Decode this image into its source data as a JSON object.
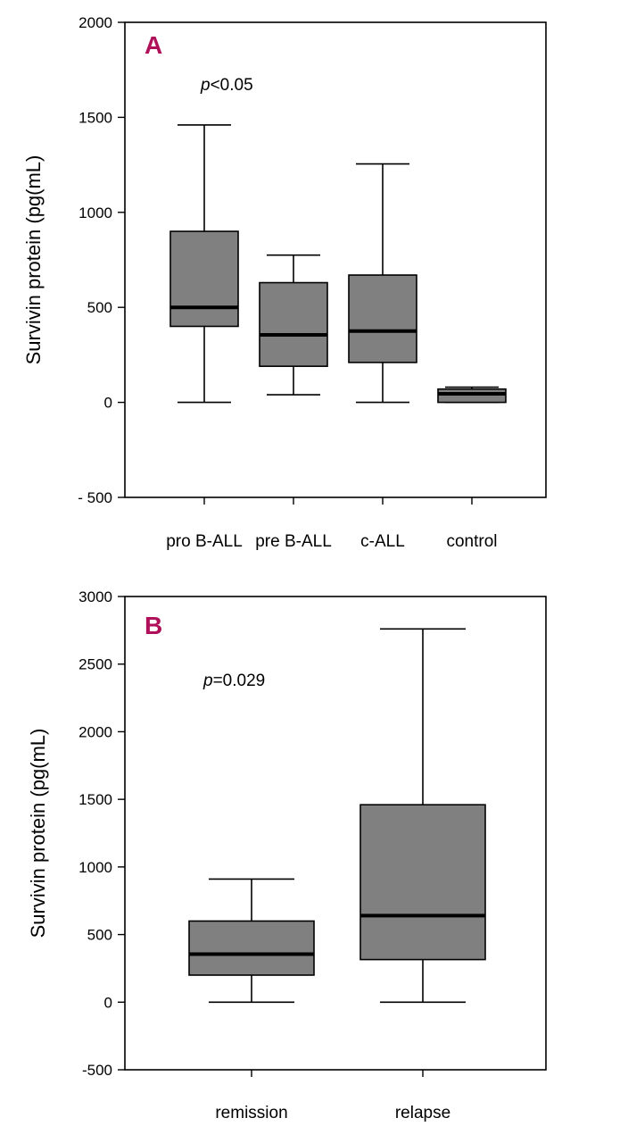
{
  "chart_data": [
    {
      "type": "box",
      "panel": "A",
      "annotation_prefix": "p",
      "annotation_suffix": "<0.05",
      "xlabel": "",
      "ylabel": "Survivin protein (pg(mL)",
      "ylim": [
        -500,
        2000
      ],
      "yticks": [
        2000,
        1500,
        1000,
        500,
        0,
        -500
      ],
      "ytick_labels": [
        "2000",
        "1500",
        "1000",
        "500",
        "0",
        "- 500"
      ],
      "categories": [
        "pro B-ALL",
        "pre B-ALL",
        "c-ALL",
        "control"
      ],
      "boxes": [
        {
          "min": 0,
          "q1": 400,
          "median": 500,
          "q3": 900,
          "max": 1460
        },
        {
          "min": 40,
          "q1": 190,
          "median": 355,
          "q3": 630,
          "max": 775
        },
        {
          "min": 0,
          "q1": 210,
          "median": 375,
          "q3": 670,
          "max": 1255
        },
        {
          "min": 0,
          "q1": 0,
          "median": 45,
          "q3": 70,
          "max": 80
        }
      ],
      "box_color": "#808080",
      "panel_color": "#b0105a"
    },
    {
      "type": "box",
      "panel": "B",
      "annotation_prefix": "p",
      "annotation_suffix": "=0.029",
      "xlabel": "",
      "ylabel": "Survivin protein (pg(mL)",
      "ylim": [
        -500,
        3000
      ],
      "yticks": [
        3000,
        2500,
        2000,
        1500,
        1000,
        500,
        0,
        -500
      ],
      "ytick_labels": [
        "3000",
        "2500",
        "2000",
        "1500",
        "1000",
        "500",
        "0",
        "-500"
      ],
      "categories": [
        "remission",
        "relapse"
      ],
      "boxes": [
        {
          "min": 0,
          "q1": 200,
          "median": 355,
          "q3": 600,
          "max": 910
        },
        {
          "min": 0,
          "q1": 315,
          "median": 640,
          "q3": 1460,
          "max": 2760
        }
      ],
      "box_color": "#808080",
      "panel_color": "#b0105a"
    }
  ]
}
